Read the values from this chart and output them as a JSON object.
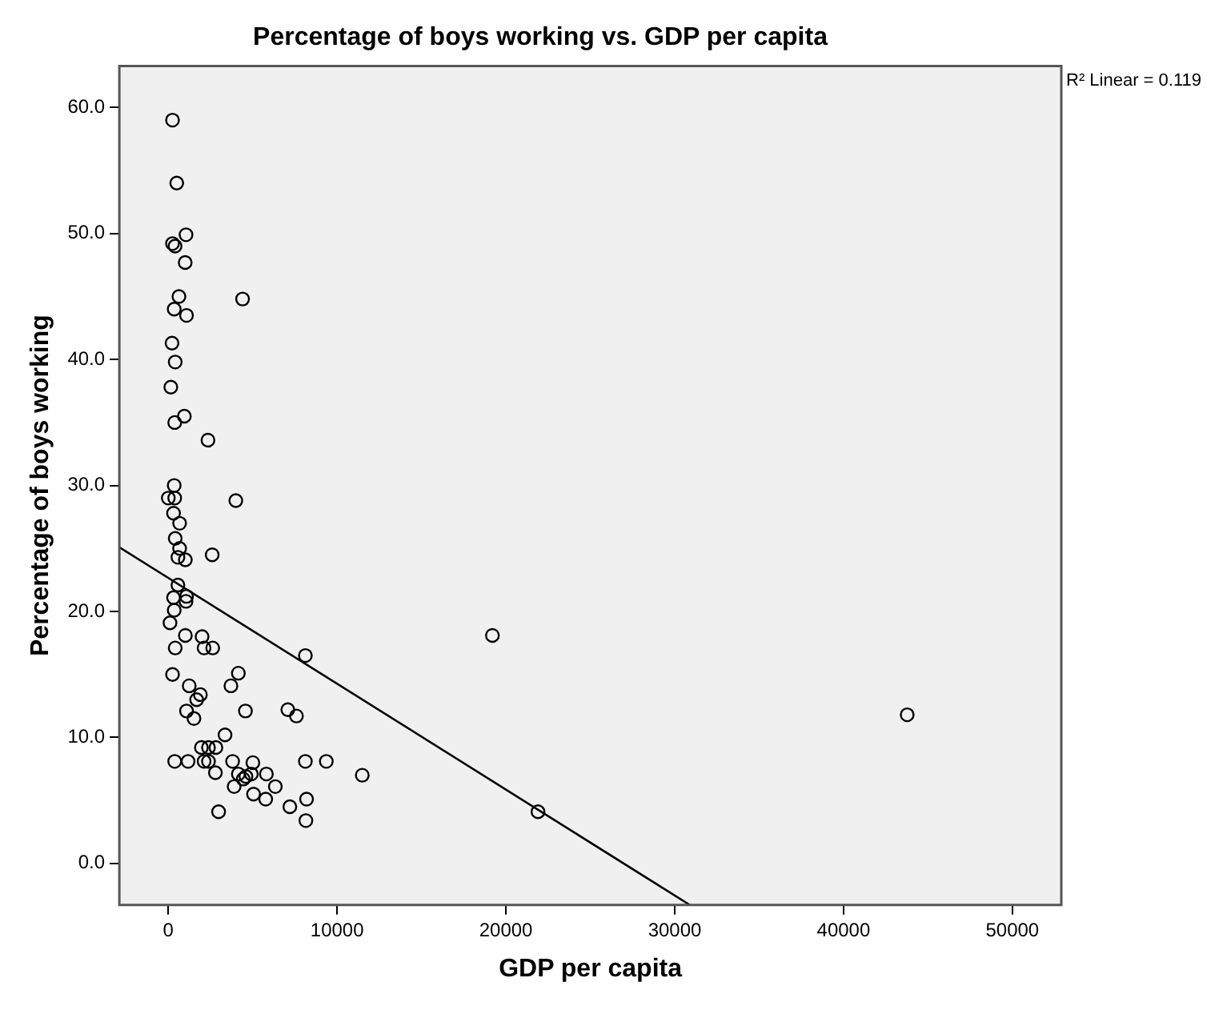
{
  "chart_data": {
    "type": "scatter",
    "title": "Percentage of boys working vs. GDP per capita",
    "xlabel": "GDP per capita",
    "ylabel": "Percentage of boys working",
    "annotations": [
      "R² Linear = 0.119"
    ],
    "xlim": [
      -2900,
      52900
    ],
    "xticks": [
      0,
      10000,
      20000,
      30000,
      40000,
      50000
    ],
    "ylim": [
      -3.3,
      63.3
    ],
    "yticks": [
      {
        "value": 0,
        "label": "0.0"
      },
      {
        "value": 10,
        "label": "10.0"
      },
      {
        "value": 20,
        "label": "20.0"
      },
      {
        "value": 30,
        "label": "30.0"
      },
      {
        "value": 40,
        "label": "40.0"
      },
      {
        "value": 50,
        "label": "50.0"
      },
      {
        "value": 60,
        "label": "60.0"
      }
    ],
    "grid": false,
    "legend": false,
    "marker": "circle",
    "series": [
      {
        "type": "scatter",
        "color": "#000000",
        "x": [
          250,
          500,
          1050,
          250,
          400,
          1000,
          630,
          4400,
          350,
          1080,
          220,
          410,
          150,
          950,
          380,
          2350,
          350,
          0,
          380,
          4000,
          310,
          670,
          410,
          670,
          570,
          1010,
          2600,
          570,
          310,
          1080,
          1050,
          350,
          100,
          1010,
          2000,
          410,
          2120,
          2630,
          8120,
          250,
          4150,
          1240,
          3710,
          1900,
          1680,
          1080,
          1520,
          4570,
          7080,
          7590,
          3360,
          1960,
          2380,
          2820,
          380,
          1170,
          2120,
          2380,
          3810,
          5010,
          8120,
          9360,
          2790,
          4150,
          4600,
          4920,
          5810,
          11490,
          3900,
          4440,
          5050,
          6340,
          5770,
          7200,
          8190,
          8150,
          2980,
          19200,
          21900,
          43770
        ],
        "values": [
          59.0,
          54.0,
          49.9,
          49.2,
          49.0,
          47.7,
          45.0,
          44.8,
          44.0,
          43.5,
          41.3,
          39.8,
          37.8,
          35.5,
          35.0,
          33.6,
          30.0,
          29.0,
          29.0,
          28.8,
          27.8,
          27.0,
          25.8,
          25.0,
          24.3,
          24.1,
          24.5,
          22.1,
          21.1,
          21.2,
          20.8,
          20.1,
          19.1,
          18.1,
          18.0,
          17.1,
          17.1,
          17.1,
          16.5,
          15.0,
          15.1,
          14.1,
          14.1,
          13.4,
          13.0,
          12.1,
          11.5,
          12.1,
          12.2,
          11.7,
          10.2,
          9.2,
          9.2,
          9.2,
          8.1,
          8.1,
          8.1,
          8.1,
          8.1,
          8.0,
          8.1,
          8.1,
          7.2,
          7.1,
          6.9,
          7.1,
          7.1,
          7.0,
          6.1,
          6.7,
          5.5,
          6.1,
          5.1,
          4.5,
          5.1,
          3.4,
          4.1,
          18.1,
          4.1,
          11.8
        ]
      },
      {
        "type": "line",
        "color": "#000000",
        "marker": "none",
        "line_style": "solid",
        "x": [
          -2900,
          30900
        ],
        "values": [
          25.1,
          -3.3
        ]
      }
    ]
  }
}
